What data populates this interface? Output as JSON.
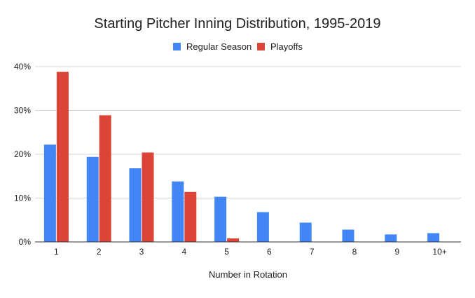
{
  "chart_data": {
    "type": "bar",
    "title": "Starting Pitcher Inning Distribution, 1995-2019",
    "xlabel": "Number in Rotation",
    "ylabel": "",
    "categories": [
      "1",
      "2",
      "3",
      "4",
      "5",
      "6",
      "7",
      "8",
      "9",
      "10+"
    ],
    "series": [
      {
        "name": "Regular Season",
        "color": "#4285f4",
        "values": [
          22.2,
          19.4,
          16.8,
          13.8,
          10.3,
          6.8,
          4.4,
          2.8,
          1.7,
          2.0
        ]
      },
      {
        "name": "Playoffs",
        "color": "#db4437",
        "values": [
          38.8,
          28.9,
          20.4,
          11.4,
          0.8,
          0,
          0,
          0,
          0,
          0
        ]
      }
    ],
    "ylim": [
      0,
      40
    ],
    "yticks": [
      0,
      10,
      20,
      30,
      40
    ],
    "ytick_labels": [
      "0%",
      "10%",
      "20%",
      "30%",
      "40%"
    ],
    "grid": true,
    "legend_position": "top-center"
  }
}
